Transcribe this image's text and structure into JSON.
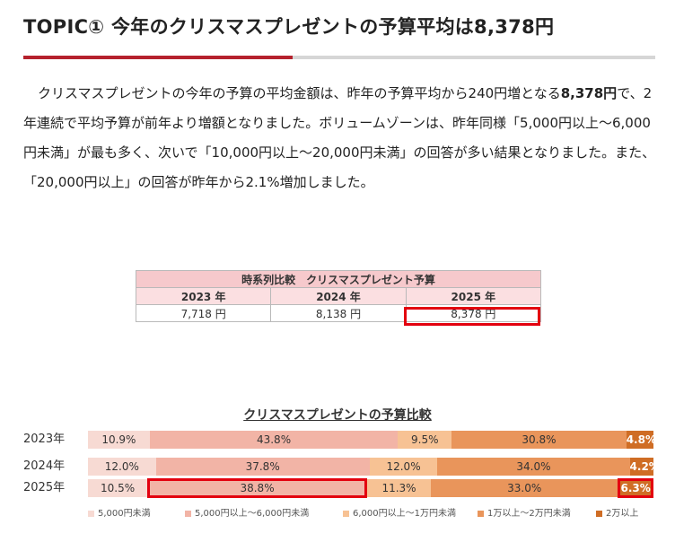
{
  "article": {
    "title": "TOPIC① 今年のクリスマスプレゼントの予算平均は8,378円",
    "paragraph_parts": [
      "クリスマスプレゼントの今年の予算の平均金額は、昨年の予算平均から240円増となる",
      "8,378円",
      "で、2年連続で平均予算が前年より増額となりました。ボリュームゾーンは、昨年同様「5,000円以上〜6,000円未満」が最も多く、次いで「10,000円以上〜20,000円未満」の回答が多い結果となりました。また、「20,000円以上」の回答が昨年から2.1%増加しました。"
    ]
  },
  "comparison_table": {
    "caption": "時系列比較　クリスマスプレゼント予算",
    "years": [
      "2023 年",
      "2024 年",
      "2025 年"
    ],
    "values": [
      "7,718 円",
      "8,138 円",
      "8,378 円"
    ]
  },
  "chart_data": {
    "type": "bar",
    "stacked": true,
    "orientation": "horizontal",
    "title": "クリスマスプレゼントの予算比較",
    "categories": [
      "2023年",
      "2024年",
      "2025年"
    ],
    "series": [
      {
        "name": "5,000円未満",
        "color": "#f7dad3",
        "values": [
          10.9,
          12.0,
          10.5
        ]
      },
      {
        "name": "5,000円以上〜6,000円未満",
        "color": "#f2b4a6",
        "values": [
          43.8,
          37.8,
          38.8
        ]
      },
      {
        "name": "6,000円以上〜1万円未満",
        "color": "#f7c294",
        "values": [
          9.5,
          12.0,
          11.3
        ]
      },
      {
        "name": "1万以上〜2万円未満",
        "color": "#e9955b",
        "values": [
          30.8,
          34.0,
          33.0
        ]
      },
      {
        "name": "2万以上",
        "color": "#cf6d25",
        "values": [
          4.8,
          4.2,
          6.3
        ]
      }
    ],
    "labels": [
      [
        "10.9%",
        "43.8%",
        "9.5%",
        "30.8%",
        "4.8%"
      ],
      [
        "12.0%",
        "37.8%",
        "12.0%",
        "34.0%",
        "4.2%"
      ],
      [
        "10.5%",
        "38.8%",
        "11.3%",
        "33.0%",
        "6.3%"
      ]
    ],
    "legend_position": "bottom"
  }
}
